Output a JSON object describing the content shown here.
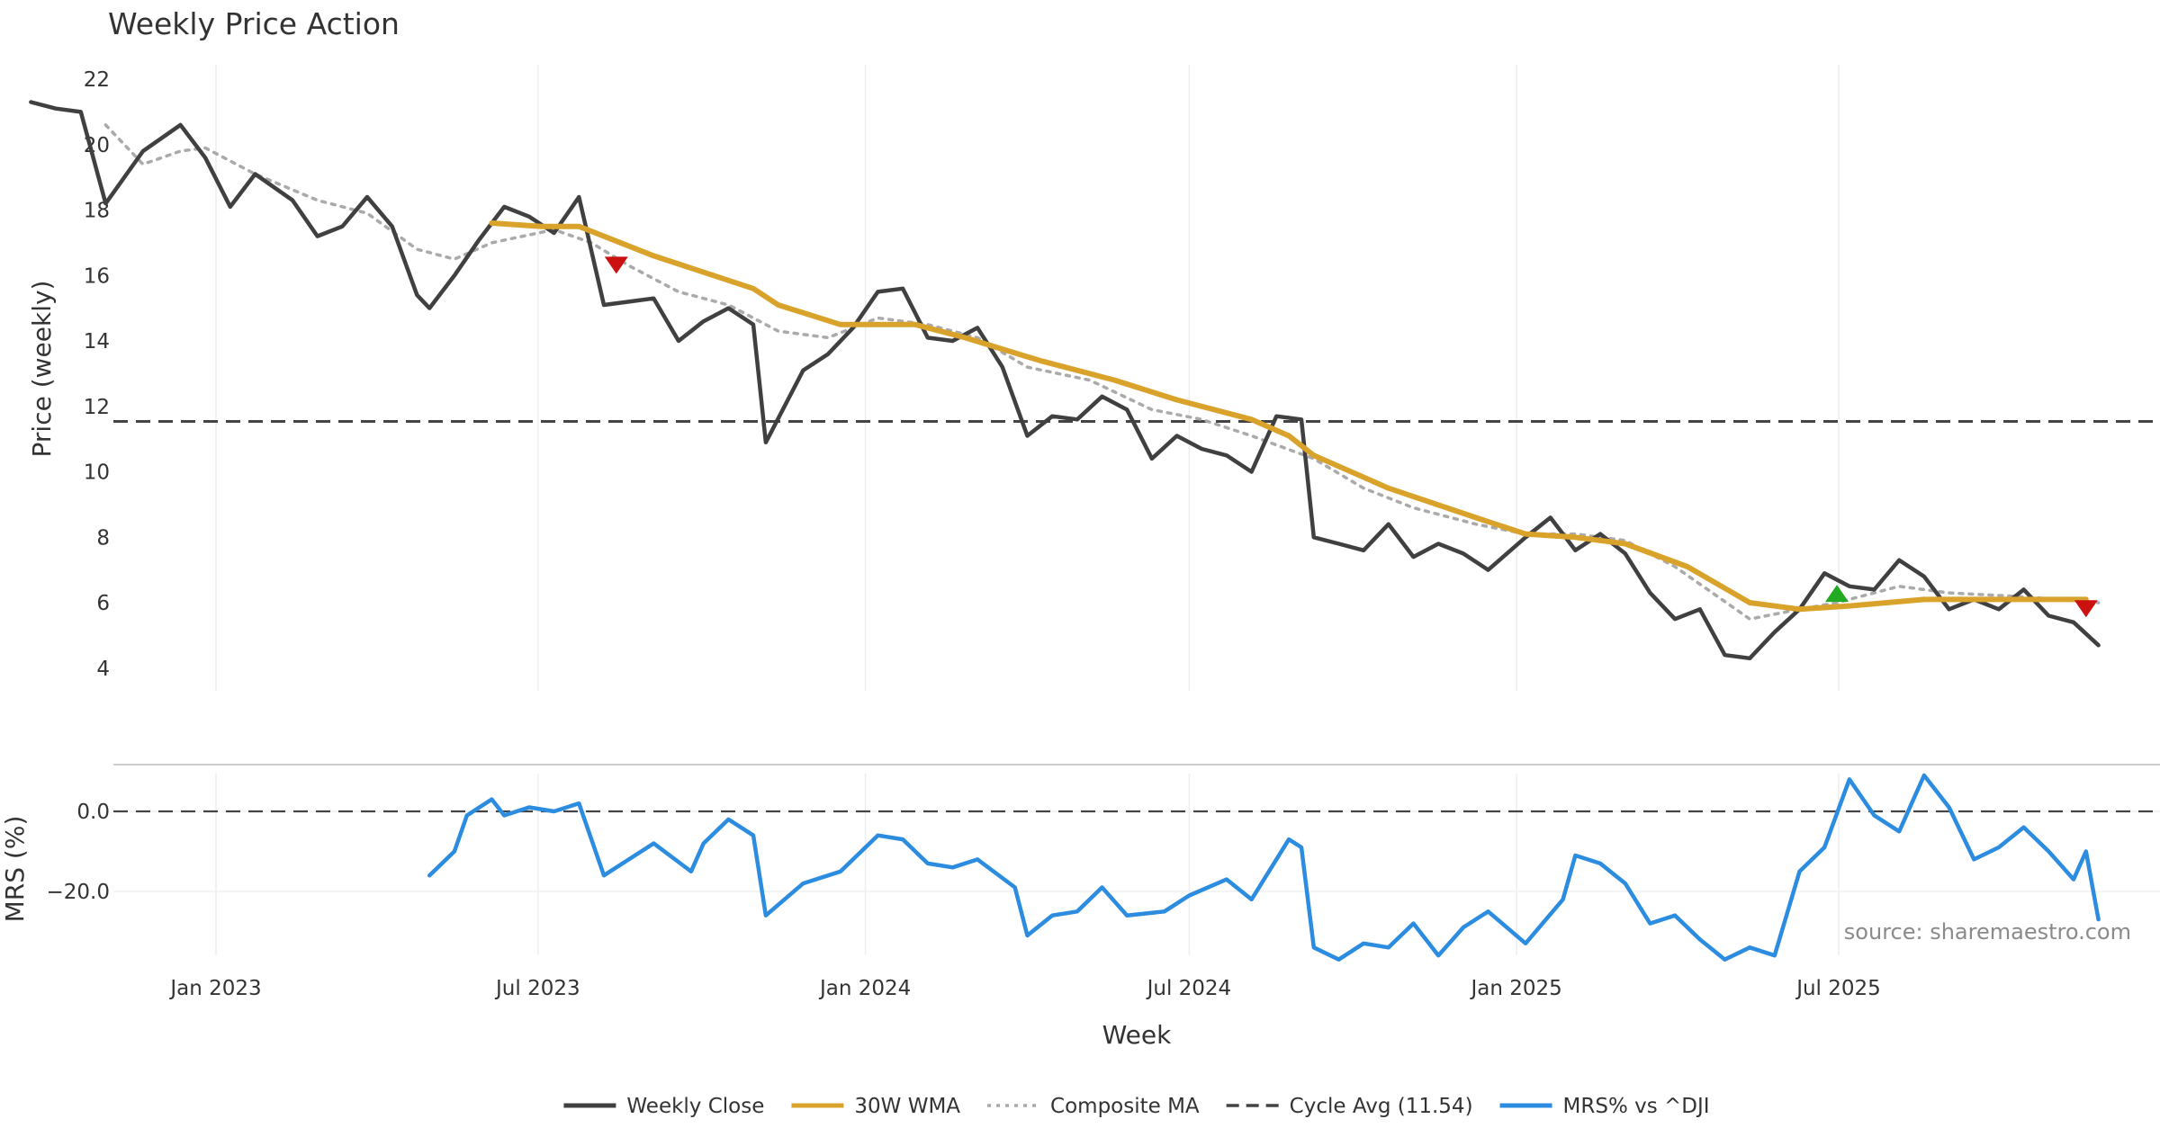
{
  "chart_data": {
    "type": "line",
    "title": "Weekly Price Action",
    "x_tick_labels": [
      "Jan 2023",
      "Jul 2023",
      "Jan 2024",
      "Jul 2024",
      "Jan 2025",
      "Jul 2025"
    ],
    "x_ticks": [
      "2023-01-01",
      "2023-07-01",
      "2024-01-01",
      "2024-07-01",
      "2025-01-01",
      "2025-07-01"
    ],
    "xlabel": "Week",
    "grid": true,
    "legend_position": "bottom-center",
    "source": "source: sharemaestro.com",
    "price_panel": {
      "ylabel": "Price (weekly)",
      "ylim": [
        3.3,
        22.3
      ],
      "yticks": [
        4,
        6,
        8,
        10,
        12,
        14,
        16,
        18,
        20,
        22
      ],
      "series": [
        {
          "name": "Weekly Close",
          "color": "#404040",
          "style": "solid",
          "points": [
            [
              "2022-09-19",
              21.3
            ],
            [
              "2022-10-03",
              21.1
            ],
            [
              "2022-10-17",
              21.0
            ],
            [
              "2022-10-31",
              18.2
            ],
            [
              "2022-11-21",
              19.8
            ],
            [
              "2022-12-12",
              20.6
            ],
            [
              "2022-12-26",
              19.6
            ],
            [
              "2023-01-09",
              18.1
            ],
            [
              "2023-01-23",
              19.1
            ],
            [
              "2023-02-13",
              18.3
            ],
            [
              "2023-02-27",
              17.2
            ],
            [
              "2023-03-13",
              17.5
            ],
            [
              "2023-03-27",
              18.4
            ],
            [
              "2023-04-10",
              17.5
            ],
            [
              "2023-04-24",
              15.4
            ],
            [
              "2023-05-01",
              15.0
            ],
            [
              "2023-05-15",
              16.0
            ],
            [
              "2023-05-29",
              17.1
            ],
            [
              "2023-06-12",
              18.1
            ],
            [
              "2023-06-26",
              17.8
            ],
            [
              "2023-07-10",
              17.3
            ],
            [
              "2023-07-24",
              18.4
            ],
            [
              "2023-08-07",
              15.1
            ],
            [
              "2023-08-21",
              15.2
            ],
            [
              "2023-09-04",
              15.3
            ],
            [
              "2023-09-18",
              14.0
            ],
            [
              "2023-10-02",
              14.6
            ],
            [
              "2023-10-16",
              15.0
            ],
            [
              "2023-10-30",
              14.5
            ],
            [
              "2023-11-06",
              10.9
            ],
            [
              "2023-11-27",
              13.1
            ],
            [
              "2023-12-11",
              13.6
            ],
            [
              "2023-12-25",
              14.4
            ],
            [
              "2024-01-08",
              15.5
            ],
            [
              "2024-01-22",
              15.6
            ],
            [
              "2024-02-05",
              14.1
            ],
            [
              "2024-02-19",
              14.0
            ],
            [
              "2024-03-04",
              14.4
            ],
            [
              "2024-03-18",
              13.2
            ],
            [
              "2024-04-01",
              11.1
            ],
            [
              "2024-04-15",
              11.7
            ],
            [
              "2024-04-29",
              11.6
            ],
            [
              "2024-05-13",
              12.3
            ],
            [
              "2024-05-27",
              11.9
            ],
            [
              "2024-06-10",
              10.4
            ],
            [
              "2024-06-24",
              11.1
            ],
            [
              "2024-07-08",
              10.7
            ],
            [
              "2024-07-22",
              10.5
            ],
            [
              "2024-08-05",
              10.0
            ],
            [
              "2024-08-19",
              11.7
            ],
            [
              "2024-09-02",
              11.6
            ],
            [
              "2024-09-09",
              8.0
            ],
            [
              "2024-09-23",
              7.8
            ],
            [
              "2024-10-07",
              7.6
            ],
            [
              "2024-10-21",
              8.4
            ],
            [
              "2024-11-04",
              7.4
            ],
            [
              "2024-11-18",
              7.8
            ],
            [
              "2024-12-02",
              7.5
            ],
            [
              "2024-12-16",
              7.0
            ],
            [
              "2025-01-06",
              8.0
            ],
            [
              "2025-01-20",
              8.6
            ],
            [
              "2025-02-03",
              7.6
            ],
            [
              "2025-02-17",
              8.1
            ],
            [
              "2025-03-03",
              7.5
            ],
            [
              "2025-03-17",
              6.3
            ],
            [
              "2025-03-31",
              5.5
            ],
            [
              "2025-04-14",
              5.8
            ],
            [
              "2025-04-28",
              4.4
            ],
            [
              "2025-05-12",
              4.3
            ],
            [
              "2025-05-26",
              5.1
            ],
            [
              "2025-06-09",
              5.8
            ],
            [
              "2025-06-23",
              6.9
            ],
            [
              "2025-07-07",
              6.5
            ],
            [
              "2025-07-21",
              6.4
            ],
            [
              "2025-08-04",
              7.3
            ],
            [
              "2025-08-18",
              6.8
            ],
            [
              "2025-09-01",
              5.8
            ],
            [
              "2025-09-15",
              6.1
            ],
            [
              "2025-09-29",
              5.8
            ],
            [
              "2025-10-13",
              6.4
            ],
            [
              "2025-10-27",
              5.6
            ],
            [
              "2025-11-10",
              5.4
            ],
            [
              "2025-11-24",
              4.7
            ]
          ]
        },
        {
          "name": "30W WMA",
          "color": "#d9a32b",
          "style": "solid",
          "points": [
            [
              "2023-06-05",
              17.6
            ],
            [
              "2023-07-03",
              17.5
            ],
            [
              "2023-07-24",
              17.5
            ],
            [
              "2023-09-04",
              16.6
            ],
            [
              "2023-10-30",
              15.6
            ],
            [
              "2023-11-13",
              15.1
            ],
            [
              "2023-12-18",
              14.5
            ],
            [
              "2024-01-29",
              14.5
            ],
            [
              "2024-02-26",
              14.1
            ],
            [
              "2024-04-08",
              13.4
            ],
            [
              "2024-05-20",
              12.8
            ],
            [
              "2024-06-24",
              12.2
            ],
            [
              "2024-08-05",
              11.6
            ],
            [
              "2024-08-26",
              11.1
            ],
            [
              "2024-09-09",
              10.5
            ],
            [
              "2024-10-21",
              9.5
            ],
            [
              "2024-12-09",
              8.6
            ],
            [
              "2025-01-06",
              8.1
            ],
            [
              "2025-02-03",
              8.0
            ],
            [
              "2025-03-03",
              7.8
            ],
            [
              "2025-04-07",
              7.1
            ],
            [
              "2025-05-12",
              6.0
            ],
            [
              "2025-06-09",
              5.8
            ],
            [
              "2025-07-07",
              5.9
            ],
            [
              "2025-08-18",
              6.1
            ],
            [
              "2025-09-29",
              6.1
            ],
            [
              "2025-10-27",
              6.1
            ],
            [
              "2025-11-17",
              6.1
            ]
          ]
        },
        {
          "name": "Composite MA",
          "color": "#aaaaaa",
          "style": "dotted",
          "points": [
            [
              "2022-10-31",
              20.6
            ],
            [
              "2022-11-21",
              19.4
            ],
            [
              "2022-12-12",
              19.8
            ],
            [
              "2022-12-26",
              19.9
            ],
            [
              "2023-01-23",
              19.1
            ],
            [
              "2023-02-27",
              18.3
            ],
            [
              "2023-03-27",
              17.9
            ],
            [
              "2023-04-24",
              16.8
            ],
            [
              "2023-05-15",
              16.5
            ],
            [
              "2023-06-05",
              17.0
            ],
            [
              "2023-07-10",
              17.4
            ],
            [
              "2023-07-31",
              17.0
            ],
            [
              "2023-08-21",
              16.3
            ],
            [
              "2023-09-18",
              15.5
            ],
            [
              "2023-10-16",
              15.1
            ],
            [
              "2023-11-13",
              14.3
            ],
            [
              "2023-12-11",
              14.1
            ],
            [
              "2024-01-08",
              14.7
            ],
            [
              "2024-02-05",
              14.5
            ],
            [
              "2024-03-04",
              14.1
            ],
            [
              "2024-04-01",
              13.2
            ],
            [
              "2024-05-06",
              12.8
            ],
            [
              "2024-06-10",
              11.9
            ],
            [
              "2024-07-08",
              11.6
            ],
            [
              "2024-08-05",
              11.1
            ],
            [
              "2024-09-09",
              10.4
            ],
            [
              "2024-10-07",
              9.5
            ],
            [
              "2024-11-04",
              8.9
            ],
            [
              "2024-12-09",
              8.4
            ],
            [
              "2025-01-06",
              8.1
            ],
            [
              "2025-02-03",
              8.1
            ],
            [
              "2025-03-03",
              7.9
            ],
            [
              "2025-03-31",
              7.1
            ],
            [
              "2025-05-12",
              5.5
            ],
            [
              "2025-06-09",
              5.8
            ],
            [
              "2025-06-30",
              6.0
            ],
            [
              "2025-08-04",
              6.5
            ],
            [
              "2025-09-01",
              6.3
            ],
            [
              "2025-10-06",
              6.2
            ],
            [
              "2025-11-03",
              6.1
            ],
            [
              "2025-11-24",
              6.0
            ]
          ]
        }
      ],
      "reference_line": {
        "name": "Cycle Avg (11.54)",
        "value": 11.54,
        "color": "#444444",
        "style": "dashed"
      },
      "markers": [
        {
          "type": "sell",
          "date": "2023-08-14",
          "value": 16.3,
          "color": "#cc1111"
        },
        {
          "type": "buy",
          "date": "2025-06-30",
          "value": 6.3,
          "color": "#22aa22"
        },
        {
          "type": "sell",
          "date": "2025-11-17",
          "value": 5.8,
          "color": "#cc1111"
        }
      ]
    },
    "mrs_panel": {
      "ylabel": "MRS (%)",
      "ylim": [
        -38,
        12
      ],
      "yticks": [
        0,
        -20
      ],
      "ytick_labels": [
        "0.0",
        "−20.0"
      ],
      "zero_line": {
        "value": 0,
        "style": "dashed",
        "color": "#444444"
      },
      "series": [
        {
          "name": "MRS% vs ^DJI",
          "color": "#2b8ce0",
          "style": "solid",
          "points": [
            [
              "2023-05-01",
              -16
            ],
            [
              "2023-05-15",
              -10
            ],
            [
              "2023-05-22",
              -1
            ],
            [
              "2023-06-05",
              3
            ],
            [
              "2023-06-12",
              -1
            ],
            [
              "2023-06-26",
              1
            ],
            [
              "2023-07-10",
              0
            ],
            [
              "2023-07-24",
              2
            ],
            [
              "2023-08-07",
              -16
            ],
            [
              "2023-08-21",
              -12
            ],
            [
              "2023-09-04",
              -8
            ],
            [
              "2023-09-25",
              -15
            ],
            [
              "2023-10-02",
              -8
            ],
            [
              "2023-10-16",
              -2
            ],
            [
              "2023-10-30",
              -6
            ],
            [
              "2023-11-06",
              -26
            ],
            [
              "2023-11-27",
              -18
            ],
            [
              "2023-12-18",
              -15
            ],
            [
              "2024-01-08",
              -6
            ],
            [
              "2024-01-22",
              -7
            ],
            [
              "2024-02-05",
              -13
            ],
            [
              "2024-02-19",
              -14
            ],
            [
              "2024-03-04",
              -12
            ],
            [
              "2024-03-25",
              -19
            ],
            [
              "2024-04-01",
              -31
            ],
            [
              "2024-04-15",
              -26
            ],
            [
              "2024-04-29",
              -25
            ],
            [
              "2024-05-13",
              -19
            ],
            [
              "2024-05-27",
              -26
            ],
            [
              "2024-06-17",
              -25
            ],
            [
              "2024-07-01",
              -21
            ],
            [
              "2024-07-22",
              -17
            ],
            [
              "2024-08-05",
              -22
            ],
            [
              "2024-08-26",
              -7
            ],
            [
              "2024-09-02",
              -9
            ],
            [
              "2024-09-09",
              -34
            ],
            [
              "2024-09-23",
              -37
            ],
            [
              "2024-10-07",
              -33
            ],
            [
              "2024-10-21",
              -34
            ],
            [
              "2024-11-04",
              -28
            ],
            [
              "2024-11-18",
              -36
            ],
            [
              "2024-12-02",
              -29
            ],
            [
              "2024-12-16",
              -25
            ],
            [
              "2025-01-06",
              -33
            ],
            [
              "2025-01-27",
              -22
            ],
            [
              "2025-02-03",
              -11
            ],
            [
              "2025-02-17",
              -13
            ],
            [
              "2025-03-03",
              -18
            ],
            [
              "2025-03-17",
              -28
            ],
            [
              "2025-03-31",
              -26
            ],
            [
              "2025-04-14",
              -32
            ],
            [
              "2025-04-28",
              -37
            ],
            [
              "2025-05-12",
              -34
            ],
            [
              "2025-05-26",
              -36
            ],
            [
              "2025-06-09",
              -15
            ],
            [
              "2025-06-23",
              -9
            ],
            [
              "2025-07-07",
              8
            ],
            [
              "2025-07-21",
              -1
            ],
            [
              "2025-08-04",
              -5
            ],
            [
              "2025-08-18",
              9
            ],
            [
              "2025-09-01",
              1
            ],
            [
              "2025-09-15",
              -12
            ],
            [
              "2025-09-29",
              -9
            ],
            [
              "2025-10-13",
              -4
            ],
            [
              "2025-10-27",
              -10
            ],
            [
              "2025-11-10",
              -17
            ],
            [
              "2025-11-17",
              -10
            ],
            [
              "2025-11-24",
              -27
            ]
          ]
        }
      ]
    }
  },
  "legend": {
    "items": [
      {
        "label": "Weekly Close",
        "color": "#404040",
        "style": "solid"
      },
      {
        "label": "30W WMA",
        "color": "#d9a32b",
        "style": "solid"
      },
      {
        "label": "Composite MA",
        "color": "#aaaaaa",
        "style": "dotted"
      },
      {
        "label": "Cycle Avg (11.54)",
        "color": "#444444",
        "style": "dashed"
      },
      {
        "label": "MRS% vs ^DJI",
        "color": "#2b8ce0",
        "style": "solid"
      }
    ]
  }
}
